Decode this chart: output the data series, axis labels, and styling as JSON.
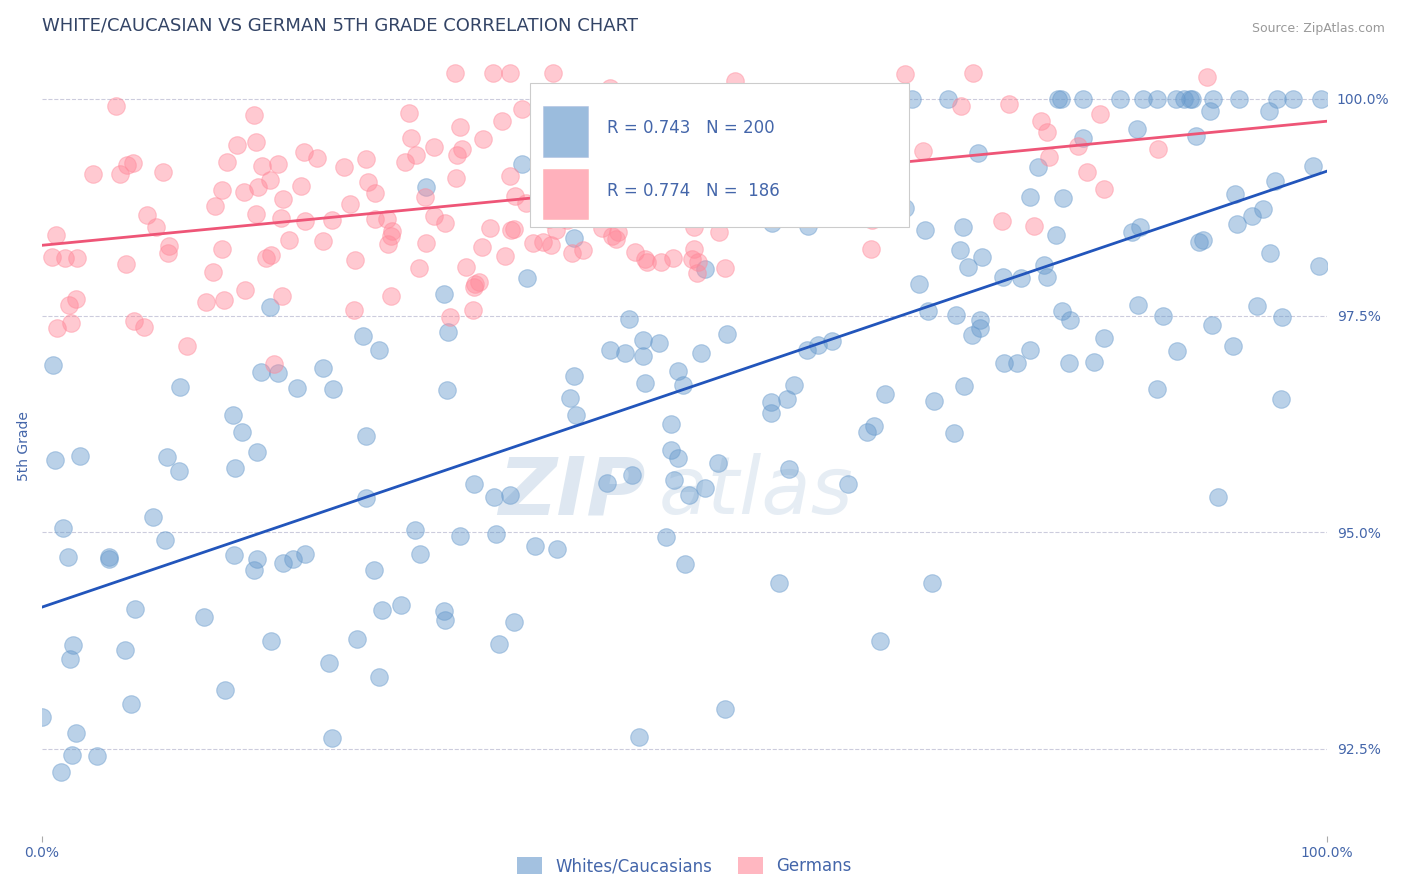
{
  "title": "WHITE/CAUCASIAN VS GERMAN 5TH GRADE CORRELATION CHART",
  "source": "Source: ZipAtlas.com",
  "ylabel": "5th Grade",
  "watermark_zip": "ZIP",
  "watermark_atlas": "atlas",
  "xlim": [
    0.0,
    100.0
  ],
  "ylim": [
    91.5,
    100.5
  ],
  "yticks": [
    92.5,
    95.0,
    97.5,
    100.0
  ],
  "blue_R": 0.743,
  "blue_N": 200,
  "pink_R": 0.774,
  "pink_N": 186,
  "blue_color": "#6699CC",
  "pink_color": "#FF8899",
  "blue_line_color": "#2255BB",
  "pink_line_color": "#EE5577",
  "title_color": "#334466",
  "axis_color": "#4466AA",
  "legend_label_blue": "Whites/Caucasians",
  "legend_label_pink": "Germans",
  "background_color": "#FFFFFF",
  "grid_color": "#CCCCDD",
  "title_fontsize": 13,
  "axis_label_fontsize": 10,
  "tick_fontsize": 10,
  "legend_fontsize": 12
}
